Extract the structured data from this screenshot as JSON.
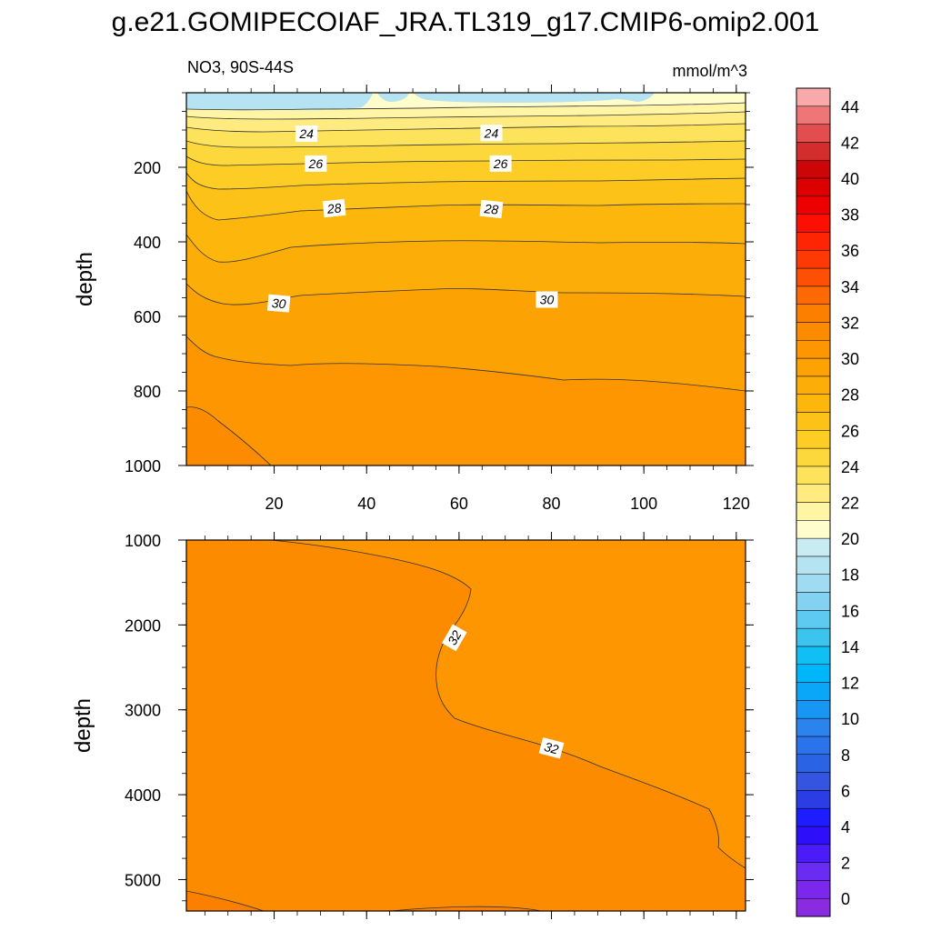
{
  "title": "g.e21.GOMIPECOIAF_JRA.TL319_g17.CMIP6-omip2.001",
  "subtitle_left": "NO3, 90S-44S",
  "units": "mmol/m^3",
  "chart_data": [
    {
      "type": "contour",
      "panel": "upper",
      "ylabel": "depth",
      "xlabel": "",
      "x_range": [
        1,
        122
      ],
      "y_range": [
        0,
        1000
      ],
      "y_reversed": true,
      "x_ticks": [
        20,
        40,
        60,
        80,
        100,
        120
      ],
      "y_ticks": [
        200,
        400,
        600,
        800,
        1000
      ],
      "contour_labels": [
        {
          "value": "24",
          "x": 27,
          "y": 110
        },
        {
          "value": "24",
          "x": 67,
          "y": 108
        },
        {
          "value": "26",
          "x": 29,
          "y": 190
        },
        {
          "value": "26",
          "x": 69,
          "y": 190
        },
        {
          "value": "28",
          "x": 33,
          "y": 310
        },
        {
          "value": "28",
          "x": 67,
          "y": 312
        },
        {
          "value": "30",
          "x": 21,
          "y": 565
        },
        {
          "value": "30",
          "x": 79,
          "y": 555
        }
      ]
    },
    {
      "type": "contour",
      "panel": "lower",
      "ylabel": "depth",
      "xlabel": "",
      "x_range": [
        1,
        122
      ],
      "y_range": [
        1000,
        5370
      ],
      "y_reversed": true,
      "y_ticks": [
        1000,
        2000,
        3000,
        4000,
        5000
      ],
      "contour_labels": [
        {
          "value": "32",
          "x": 59,
          "y": 2150
        },
        {
          "value": "32",
          "x": 80,
          "y": 3450
        }
      ]
    }
  ],
  "colorbar": {
    "labels": [
      "0",
      "2",
      "4",
      "6",
      "8",
      "10",
      "12",
      "14",
      "16",
      "18",
      "20",
      "22",
      "24",
      "26",
      "28",
      "30",
      "32",
      "34",
      "36",
      "38",
      "40",
      "42",
      "44"
    ],
    "colors": [
      "#8a2be2",
      "#7b28ec",
      "#6a2cf2",
      "#4b1cf8",
      "#2e0ffa",
      "#1d1dff",
      "#2b3ee6",
      "#3555e0",
      "#2a64e4",
      "#2a73ea",
      "#2b83ee",
      "#1896f4",
      "#0aa6f8",
      "#00b6fb",
      "#11bff4",
      "#3cc4ef",
      "#5ecaf1",
      "#84d2f1",
      "#9fdbf2",
      "#b6e3f2",
      "#c9ebf2",
      "#fffdcc",
      "#fff5a5",
      "#ffeb7f",
      "#fde35c",
      "#fdd83d",
      "#fdcd25",
      "#fdc217",
      "#fdb70c",
      "#fdad08",
      "#fca202",
      "#fd9600",
      "#fd8b00",
      "#fd7f00",
      "#fd6a03",
      "#fd5005",
      "#fd3a05",
      "#fe2505",
      "#fd0f03",
      "#ee0000",
      "#dd0000",
      "#cc0606",
      "#d42d2d",
      "#e24e4e",
      "#ee7676",
      "#f9a9a9"
    ]
  }
}
